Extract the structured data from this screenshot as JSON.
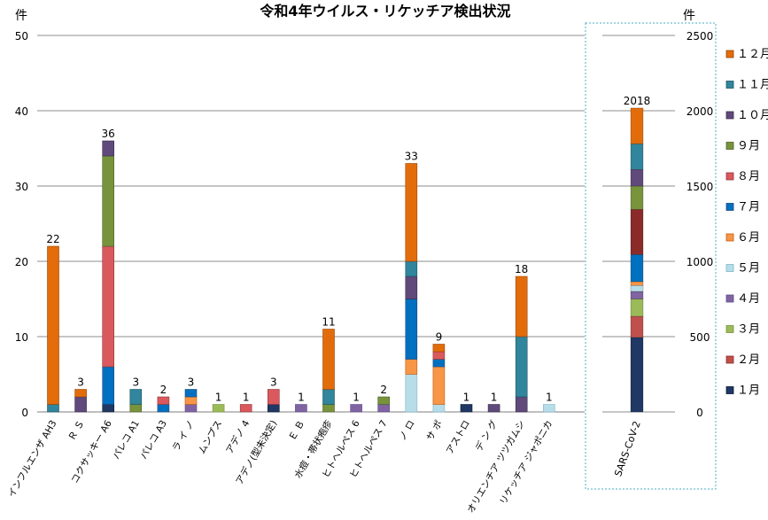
{
  "chart_data": [
    {
      "type": "bar",
      "stacked": true,
      "title": "令和4年ウイルス・リケッチア検出状況",
      "ylabel": "件",
      "ylim": [
        0,
        50
      ],
      "yticks": [
        0,
        10,
        20,
        30,
        40,
        50
      ],
      "grid": true,
      "categories": [
        "インフルエンザ AH3",
        "Ｒ Ｓ",
        "コクサッキー A6",
        "パレコ A1",
        "パレコ A3",
        "ラ イ ノ",
        "ムンプス",
        "アデノ 4",
        "アデノ(型未決定)",
        "Ｅ Ｂ",
        "水痘・帯状疱疹",
        "ヒトヘルペス 6",
        "ヒトヘルペス 7",
        "ノ ロ",
        "サ ポ",
        "アストロ",
        "デ ン グ",
        "オリエンチア ツツガムシ",
        "リケッチア ジャポニカ"
      ],
      "totals": [
        22,
        3,
        36,
        3,
        2,
        3,
        1,
        1,
        3,
        1,
        11,
        1,
        2,
        33,
        9,
        1,
        1,
        18,
        1
      ],
      "series": [
        {
          "name": "1月",
          "values": [
            0,
            0,
            1,
            0,
            0,
            0,
            0,
            0,
            1,
            0,
            0,
            0,
            0,
            0,
            0,
            1,
            0,
            0,
            0
          ]
        },
        {
          "name": "2月",
          "values": [
            0,
            0,
            0,
            0,
            0,
            0,
            0,
            0,
            0,
            0,
            0,
            0,
            0,
            0,
            0,
            0,
            0,
            0,
            0
          ]
        },
        {
          "name": "3月",
          "values": [
            0,
            0,
            0,
            0,
            0,
            0,
            1,
            0,
            0,
            0,
            0,
            0,
            0,
            0,
            0,
            0,
            0,
            0,
            0
          ]
        },
        {
          "name": "4月",
          "values": [
            0,
            0,
            0,
            0,
            0,
            1,
            0,
            0,
            0,
            1,
            0,
            1,
            1,
            0,
            0,
            0,
            0,
            0,
            0
          ]
        },
        {
          "name": "5月",
          "values": [
            0,
            0,
            0,
            0,
            0,
            0,
            0,
            0,
            0,
            0,
            0,
            0,
            0,
            5,
            1,
            0,
            0,
            0,
            1
          ]
        },
        {
          "name": "6月",
          "values": [
            0,
            0,
            0,
            0,
            0,
            1,
            0,
            0,
            0,
            0,
            0,
            0,
            0,
            2,
            5,
            0,
            0,
            0,
            0
          ]
        },
        {
          "name": "7月",
          "values": [
            0,
            0,
            5,
            0,
            1,
            1,
            0,
            0,
            0,
            0,
            0,
            0,
            0,
            8,
            1,
            0,
            0,
            0,
            0
          ]
        },
        {
          "name": "8月",
          "values": [
            0,
            0,
            16,
            0,
            1,
            0,
            0,
            1,
            2,
            0,
            0,
            0,
            0,
            0,
            1,
            0,
            0,
            0,
            0
          ]
        },
        {
          "name": "9月",
          "values": [
            0,
            0,
            12,
            1,
            0,
            0,
            0,
            0,
            0,
            0,
            1,
            0,
            1,
            0,
            0,
            0,
            0,
            0,
            0
          ]
        },
        {
          "name": "10月",
          "values": [
            0,
            2,
            2,
            0,
            0,
            0,
            0,
            0,
            0,
            0,
            0,
            0,
            0,
            3,
            0,
            0,
            1,
            2,
            0
          ]
        },
        {
          "name": "11月",
          "values": [
            1,
            0,
            0,
            2,
            0,
            0,
            0,
            0,
            0,
            0,
            2,
            0,
            0,
            2,
            0,
            0,
            0,
            8,
            0
          ]
        },
        {
          "name": "12月",
          "values": [
            21,
            1,
            0,
            0,
            0,
            0,
            0,
            0,
            0,
            0,
            8,
            0,
            0,
            13,
            1,
            0,
            0,
            8,
            0
          ]
        }
      ]
    },
    {
      "type": "bar",
      "stacked": true,
      "ylabel": "件",
      "ylim": [
        0,
        2500
      ],
      "yticks": [
        0,
        500,
        1000,
        1500,
        2000,
        2500
      ],
      "categories": [
        "SARS-CoV-2"
      ],
      "totals": [
        2018
      ],
      "series": [
        {
          "name": "1月",
          "values": [
            495
          ]
        },
        {
          "name": "2月",
          "values": [
            140
          ]
        },
        {
          "name": "3月",
          "values": [
            115
          ]
        },
        {
          "name": "4月",
          "values": [
            50
          ]
        },
        {
          "name": "5月",
          "values": [
            40
          ]
        },
        {
          "name": "6月",
          "values": [
            25
          ]
        },
        {
          "name": "7月",
          "values": [
            180
          ]
        },
        {
          "name": "8月",
          "values": [
            300
          ]
        },
        {
          "name": "9月",
          "values": [
            155
          ]
        },
        {
          "name": "10月",
          "values": [
            110
          ]
        },
        {
          "name": "11月",
          "values": [
            170
          ]
        },
        {
          "name": "12月",
          "values": [
            238
          ]
        }
      ]
    }
  ],
  "legend": [
    {
      "label": "１２月",
      "color": "#E36C0A",
      "dark": "#974706"
    },
    {
      "label": "１１月",
      "color": "#31859C",
      "dark": "#1D5563"
    },
    {
      "label": "１０月",
      "color": "#604A7B",
      "dark": "#3B2D4C"
    },
    {
      "label": "９月",
      "color": "#77933C",
      "dark": "#4F6228"
    },
    {
      "label": "８月",
      "color": "#D9595E",
      "dark": "#943634"
    },
    {
      "label": "７月",
      "color": "#0070C0",
      "dark": "#1F497D"
    },
    {
      "label": "６月",
      "color": "#F79646",
      "dark": "#C65911"
    },
    {
      "label": "５月",
      "color": "#B7DDE8",
      "dark": "#7FB6CA"
    },
    {
      "label": "４月",
      "color": "#8064A2",
      "dark": "#5F4B8B"
    },
    {
      "label": "３月",
      "color": "#9BBB59",
      "dark": "#76923C"
    },
    {
      "label": "２月",
      "color": "#C0504D",
      "dark": "#8B2B29"
    },
    {
      "label": "１月",
      "color": "#1F3864",
      "dark": "#0F1C33"
    }
  ],
  "sars_colors": {
    "1月": "#1F3864",
    "2月": "#C0504D",
    "3月": "#9BBB59",
    "4月": "#8064A2",
    "5月": "#B7DDE8",
    "6月": "#F79646",
    "7月": "#0070C0",
    "8月": "#8B2B29",
    "9月": "#77933C",
    "10月": "#604A7B",
    "11月": "#31859C",
    "12月": "#E36C0A"
  }
}
